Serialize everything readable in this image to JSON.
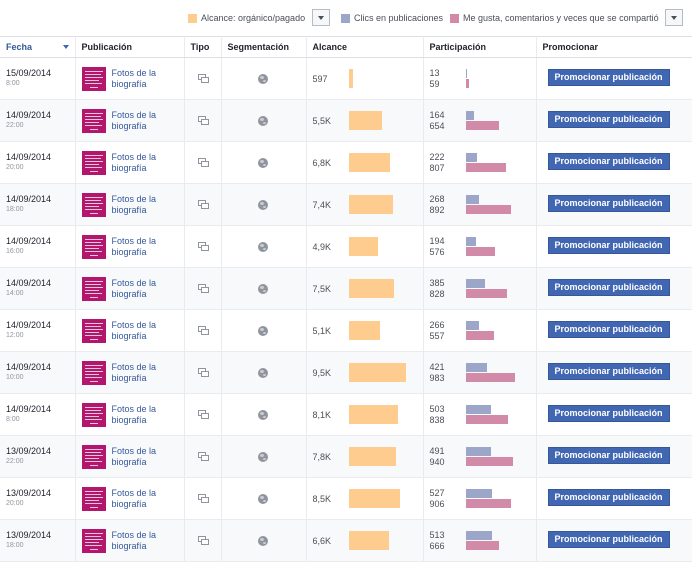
{
  "legend": [
    {
      "label": "Alcance: orgánico/pagado",
      "color": "#ffcc8f"
    },
    {
      "label": "Clics en publicaciones",
      "color": "#9ca6c9"
    },
    {
      "label": "Me gusta, comentarios y veces que se compartió",
      "color": "#d18aa7"
    }
  ],
  "headers": {
    "fecha": "Fecha",
    "publicacion": "Publicación",
    "tipo": "Tipo",
    "segmentacion": "Segmentación",
    "alcance": "Alcance",
    "participacion": "Participación",
    "promocionar": "Promocionar"
  },
  "colors": {
    "reach": "#ffcc8f",
    "clicks": "#9ca6c9",
    "likes": "#d18aa7",
    "button": "#4267b2",
    "thumb": "#b3166d"
  },
  "rows": [
    {
      "date": "15/09/2014",
      "time": "8:00",
      "title": "Fotos de la biografía",
      "reach": "597",
      "reach_value": 597,
      "clicks": "13",
      "likes": "59",
      "button": "Promocionar publicación"
    },
    {
      "date": "14/09/2014",
      "time": "22:00",
      "title": "Fotos de la biografía",
      "reach": "5,5K",
      "reach_value": 5500,
      "clicks": "164",
      "likes": "654",
      "button": "Promocionar publicación"
    },
    {
      "date": "14/09/2014",
      "time": "20:00",
      "title": "Fotos de la biografía",
      "reach": "6,8K",
      "reach_value": 6800,
      "clicks": "222",
      "likes": "807",
      "button": "Promocionar publicación"
    },
    {
      "date": "14/09/2014",
      "time": "18:00",
      "title": "Fotos de la biografía",
      "reach": "7,4K",
      "reach_value": 7400,
      "clicks": "268",
      "likes": "892",
      "button": "Promocionar publicación"
    },
    {
      "date": "14/09/2014",
      "time": "16:00",
      "title": "Fotos de la biografía",
      "reach": "4,9K",
      "reach_value": 4900,
      "clicks": "194",
      "likes": "576",
      "button": "Promocionar publicación"
    },
    {
      "date": "14/09/2014",
      "time": "14:00",
      "title": "Fotos de la biografía",
      "reach": "7,5K",
      "reach_value": 7500,
      "clicks": "385",
      "likes": "828",
      "button": "Promocionar publicación"
    },
    {
      "date": "14/09/2014",
      "time": "12:00",
      "title": "Fotos de la biografía",
      "reach": "5,1K",
      "reach_value": 5100,
      "clicks": "266",
      "likes": "557",
      "button": "Promocionar publicación"
    },
    {
      "date": "14/09/2014",
      "time": "10:00",
      "title": "Fotos de la biografía",
      "reach": "9,5K",
      "reach_value": 9500,
      "clicks": "421",
      "likes": "983",
      "button": "Promocionar publicación"
    },
    {
      "date": "14/09/2014",
      "time": "8:00",
      "title": "Fotos de la biografía",
      "reach": "8,1K",
      "reach_value": 8100,
      "clicks": "503",
      "likes": "838",
      "button": "Promocionar publicación"
    },
    {
      "date": "13/09/2014",
      "time": "22:00",
      "title": "Fotos de la biografía",
      "reach": "7,8K",
      "reach_value": 7800,
      "clicks": "491",
      "likes": "940",
      "button": "Promocionar publicación"
    },
    {
      "date": "13/09/2014",
      "time": "20:00",
      "title": "Fotos de la biografía",
      "reach": "8,5K",
      "reach_value": 8500,
      "clicks": "527",
      "likes": "906",
      "button": "Promocionar publicación"
    },
    {
      "date": "13/09/2014",
      "time": "18:00",
      "title": "Fotos de la biografía",
      "reach": "6,6K",
      "reach_value": 6600,
      "clicks": "513",
      "likes": "666",
      "button": "Promocionar publicación"
    }
  ]
}
